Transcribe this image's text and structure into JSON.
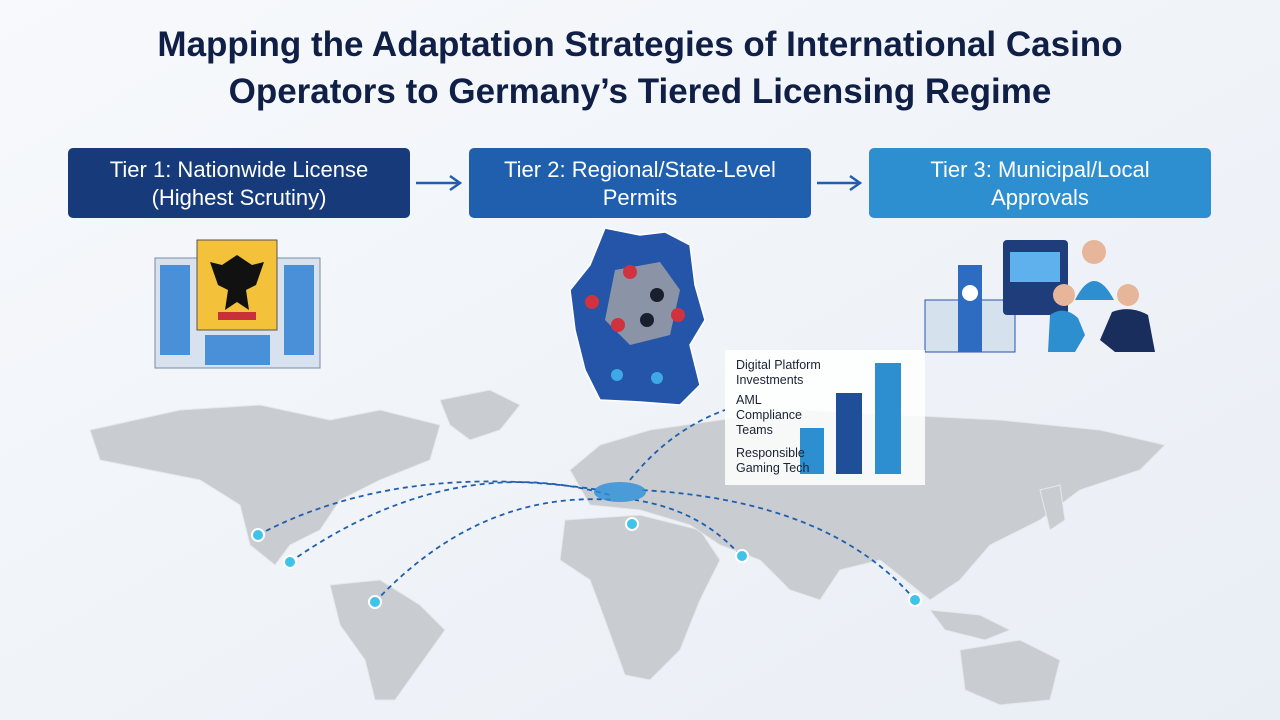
{
  "title": {
    "lines": [
      "Mapping the Adaptation Strategies of International Casino",
      "Operators to Germany’s Tiered Licensing Regime"
    ]
  },
  "tiers": [
    {
      "lines": [
        "Tier 1: Nationwide License",
        "(Highest Scrutiny)"
      ]
    },
    {
      "lines": [
        "Tier 2: Regional/State-Level",
        "Permits"
      ]
    },
    {
      "lines": [
        "Tier 3: Municipal/Local",
        "Approvals"
      ]
    }
  ],
  "investments": {
    "labels": [
      {
        "lines": [
          "Digital Platform",
          "Investments"
        ]
      },
      {
        "lines": [
          "AML",
          "Compliance",
          "Teams"
        ]
      },
      {
        "lines": [
          "Responsible",
          "Gaming Tech"
        ]
      }
    ]
  }
}
